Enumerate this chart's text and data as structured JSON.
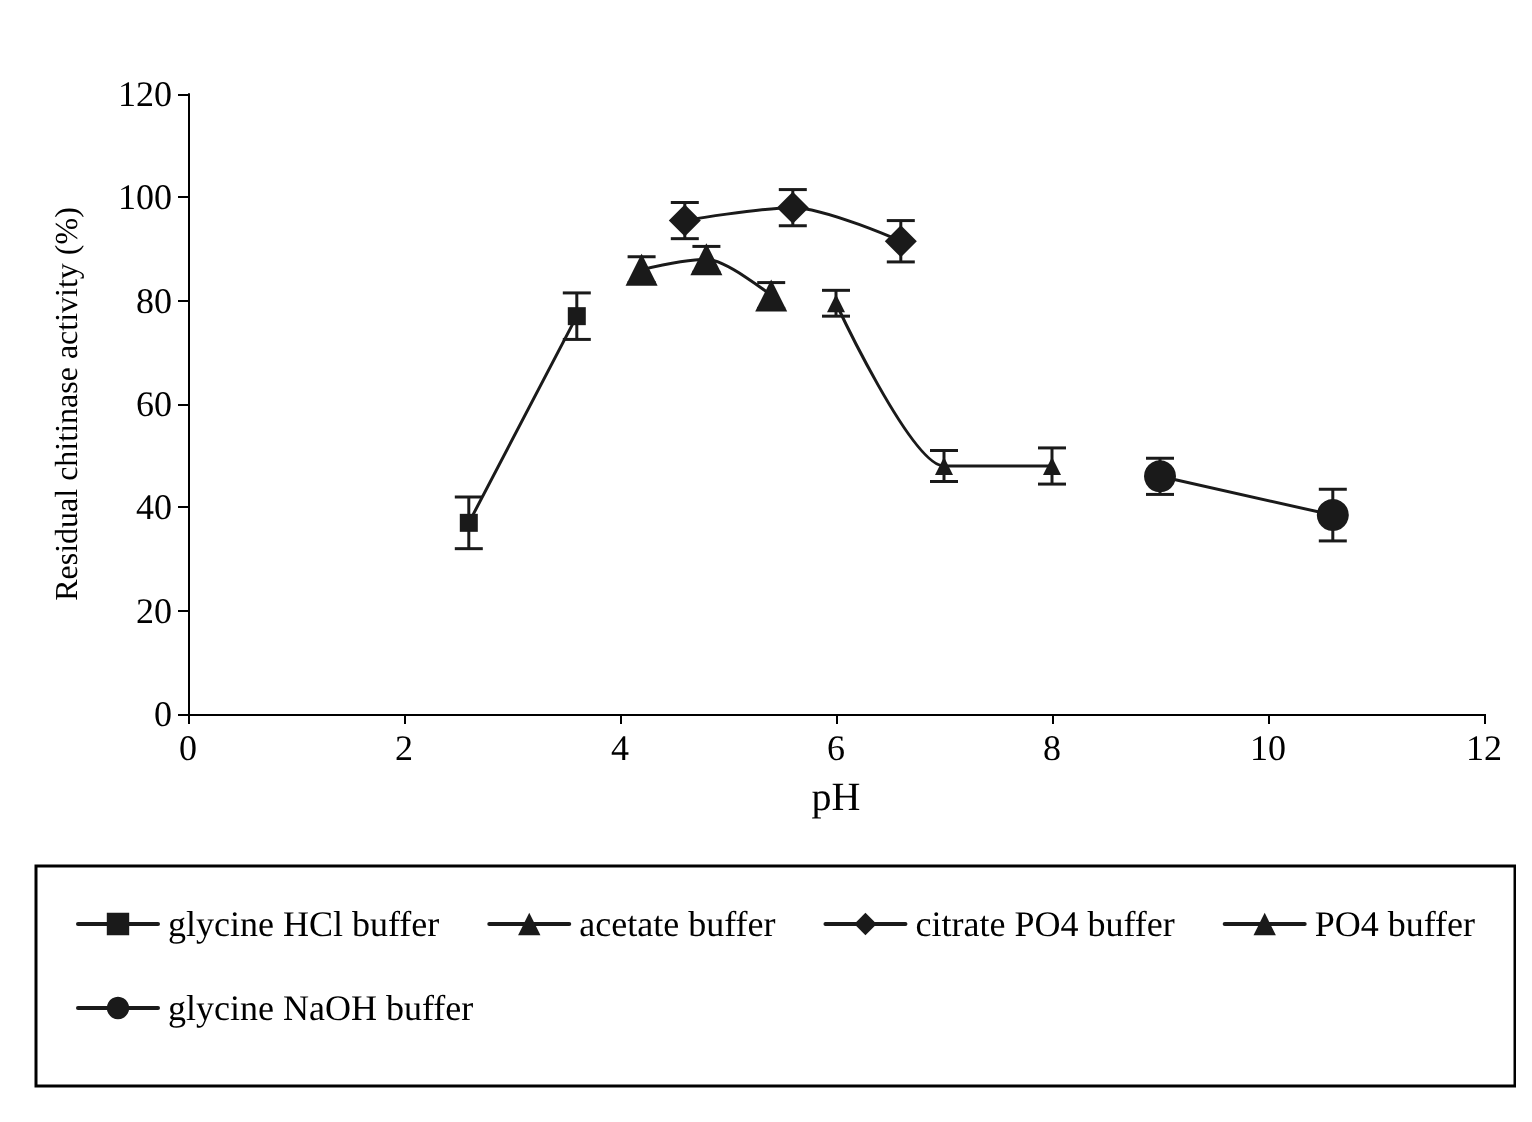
{
  "chart_data": {
    "type": "line",
    "xlabel": "pH",
    "ylabel": "Residual chitinase activity (%)",
    "xlim": [
      0,
      12
    ],
    "xticks": [
      0,
      2,
      4,
      6,
      8,
      10,
      12
    ],
    "ylim": [
      0,
      120
    ],
    "yticks": [
      0,
      20,
      40,
      60,
      80,
      100,
      120
    ],
    "grid": false,
    "legend": "bottom",
    "line_style": "solid",
    "series": [
      {
        "name": "glycine HCl buffer",
        "color": "#1a1a1a",
        "marker": "square",
        "x": [
          2.6,
          3.6
        ],
        "values": [
          37,
          77
        ],
        "errors": [
          5,
          4.5
        ]
      },
      {
        "name": "acetate buffer",
        "color": "#1a1a1a",
        "marker": "triangle",
        "x": [
          4.2,
          4.8,
          5.4
        ],
        "values": [
          86,
          88,
          81
        ],
        "errors": [
          2.5,
          2.5,
          2.5
        ]
      },
      {
        "name": "citrate PO4 buffer",
        "color": "#1a1a1a",
        "marker": "diamond",
        "x": [
          4.6,
          5.6,
          6.6
        ],
        "values": [
          95.5,
          98,
          91.5
        ],
        "errors": [
          3.5,
          3.5,
          4
        ]
      },
      {
        "name": "PO4 buffer",
        "color": "#1a1a1a",
        "marker": "triangle",
        "x": [
          6.0,
          7.0,
          8.0
        ],
        "values": [
          79.5,
          48,
          48
        ],
        "errors": [
          2.5,
          3,
          3.5
        ]
      },
      {
        "name": "glycine NaOH buffer",
        "color": "#1a1a1a",
        "marker": "circle",
        "x": [
          9.0,
          10.6
        ],
        "values": [
          46,
          38.5
        ],
        "errors": [
          3.5,
          5
        ]
      }
    ]
  }
}
